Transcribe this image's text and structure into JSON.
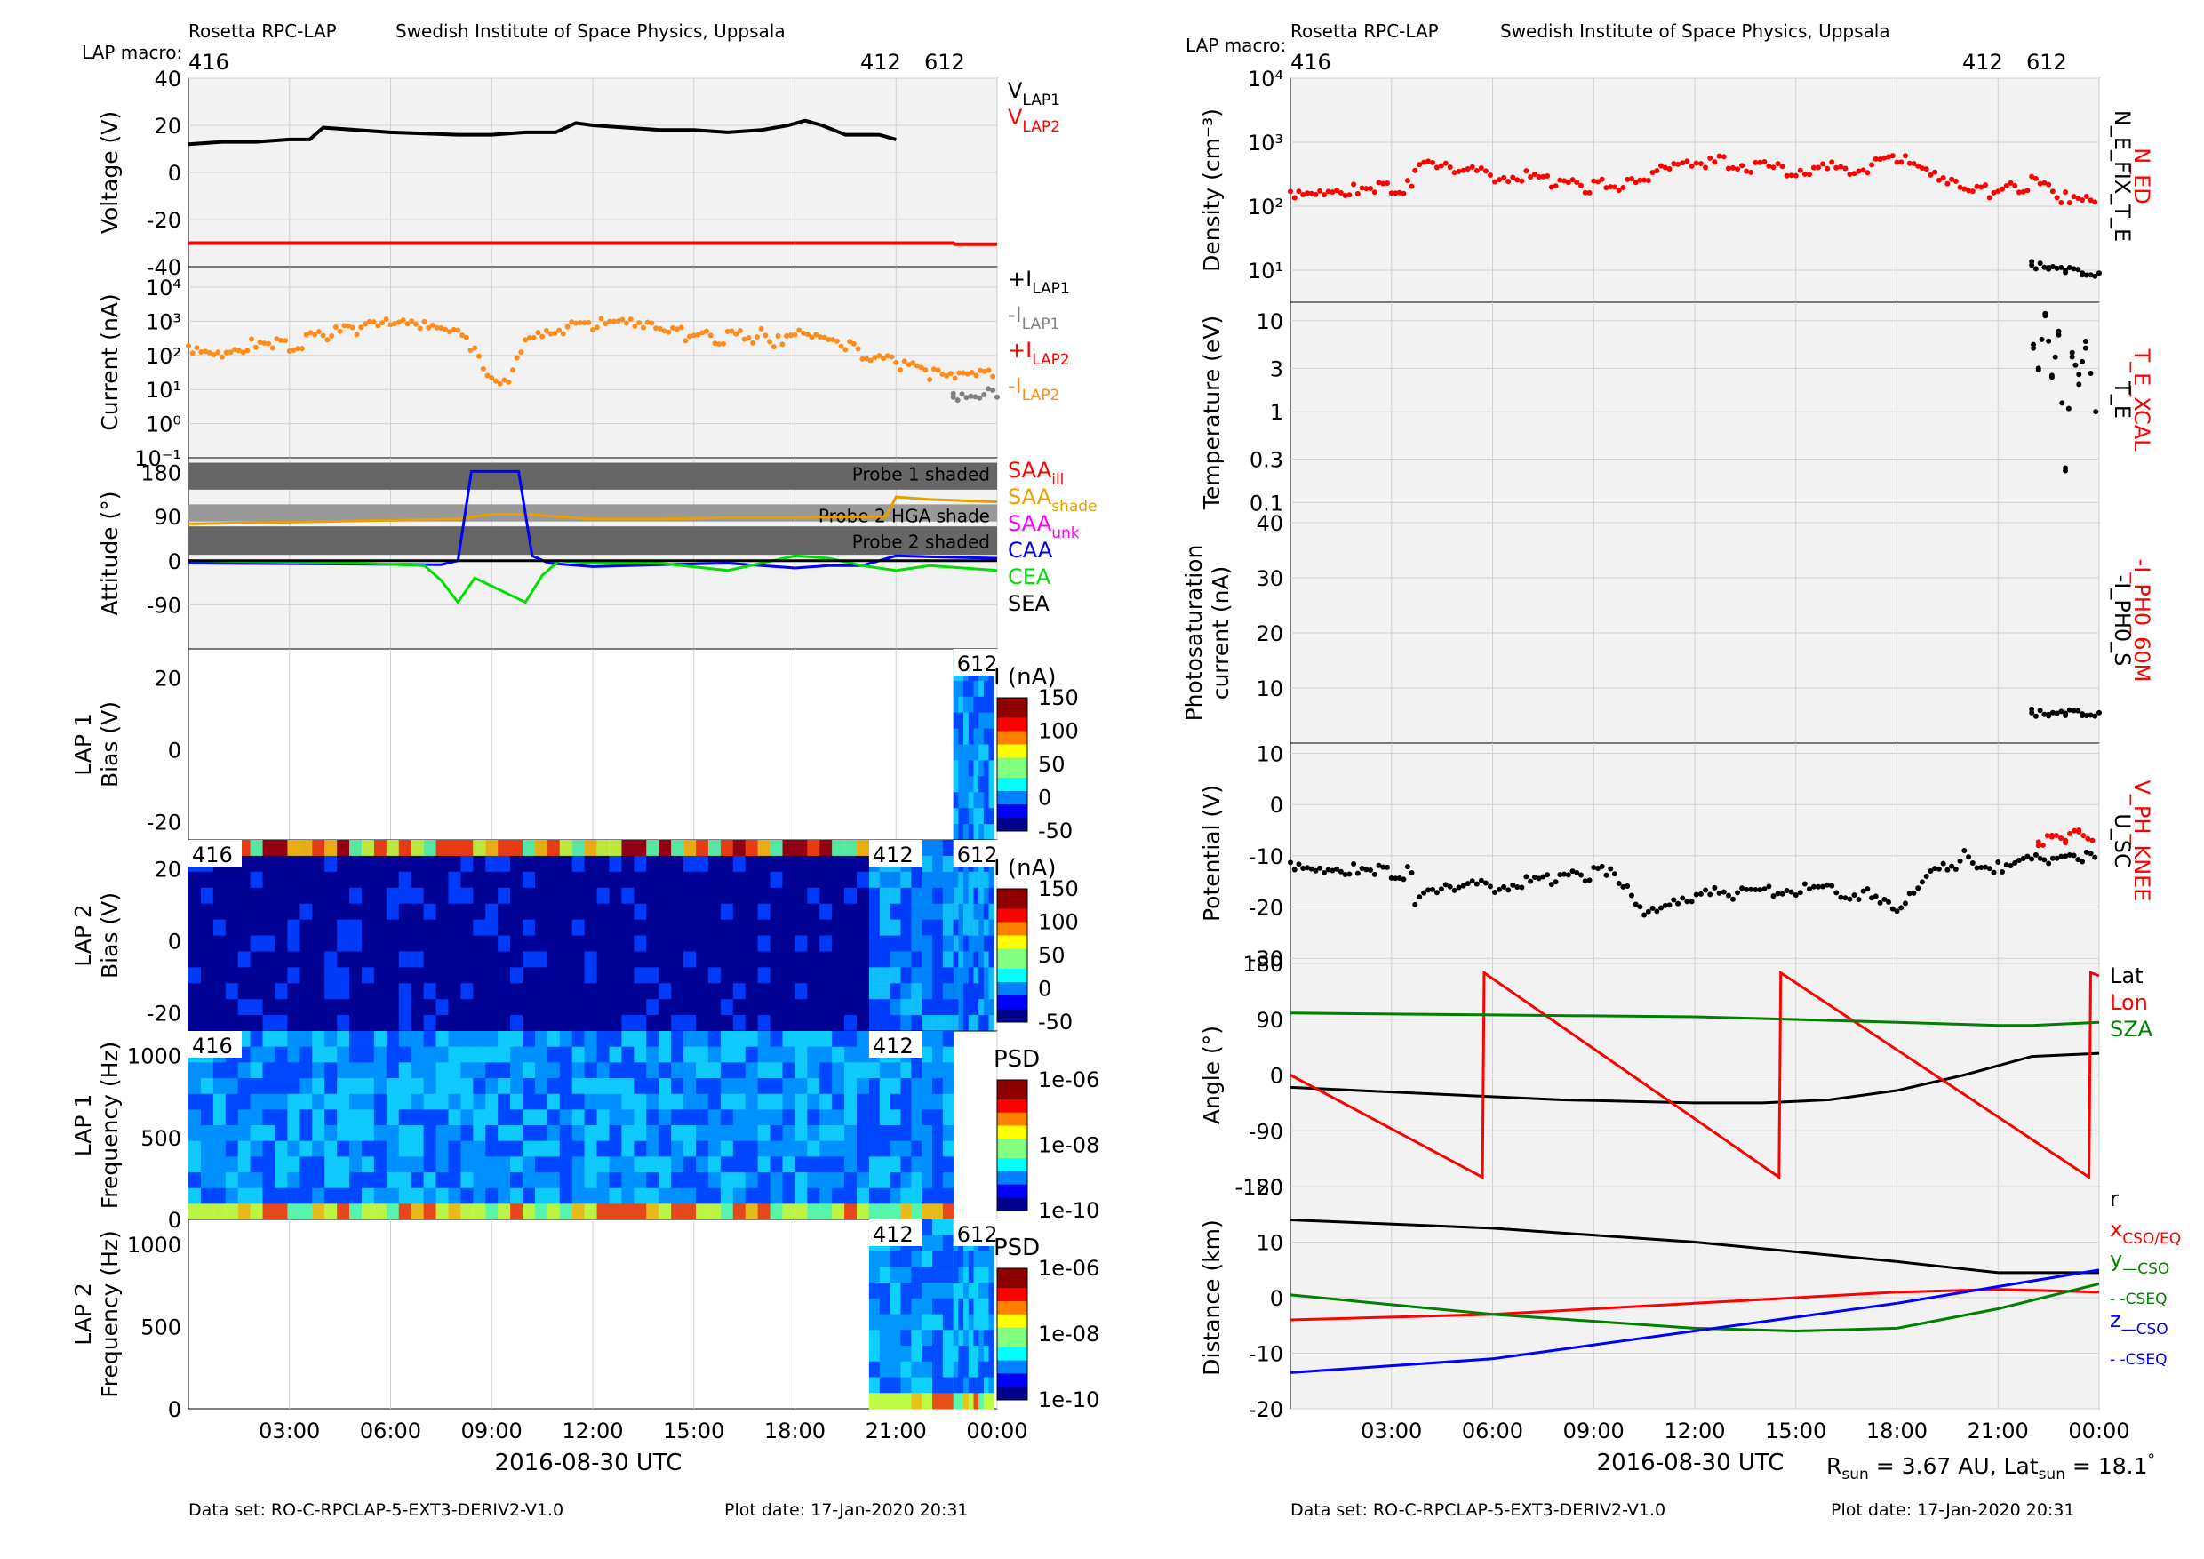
{
  "header": {
    "instrument": "Rosetta RPC-LAP",
    "institute": "Swedish Institute of Space Physics, Uppsala",
    "macro_label": "LAP macro:",
    "macros": [
      "416",
      "412",
      "612"
    ]
  },
  "footer": {
    "dataset": "Data set: RO-C-RPCLAP-5-EXT3-DERIV2-V1.0",
    "plot_date": "Plot date: 17-Jan-2020 20:31",
    "rsun_prefix": "R",
    "rsun_sub": "sun",
    "rsun_value": " = 3.67 AU, Lat",
    "lat_sub": "sun",
    "lat_value": " = 18.1",
    "degree": "°"
  },
  "time_axis": {
    "ticks": [
      "03:00",
      "06:00",
      "09:00",
      "12:00",
      "15:00",
      "18:00",
      "21:00",
      "00:00"
    ],
    "label": "2016-08-30 UTC"
  },
  "colors": {
    "black": "#000000",
    "red": "#ff0000",
    "orange": "#ff8c1a",
    "gray": "#808080",
    "blue": "#0000ff",
    "green": "#00e000",
    "dark_green": "#008000",
    "magenta": "#ff00ff",
    "gold": "#e6a100",
    "panel_bg": "#f2f2f2",
    "grid": "#d0d0d0"
  },
  "chart_data": [
    {
      "type": "line",
      "panel": "voltage",
      "ylabel": "Voltage (V)",
      "ylim": [
        -40,
        40
      ],
      "yticks": [
        "40",
        "20",
        "0",
        "-20",
        "-40"
      ],
      "legend": [
        {
          "main": "V",
          "sub": "LAP1",
          "color": "#000000"
        },
        {
          "main": "V",
          "sub": "LAP2",
          "color": "#ff0000"
        }
      ],
      "series": [
        {
          "name": "V_LAP1",
          "color": "#000000",
          "x": [
            0,
            1,
            2,
            3,
            3.6,
            4,
            6,
            8,
            9,
            10,
            10.9,
            11.5,
            12,
            13,
            14,
            15,
            16,
            17,
            17.8,
            18.3,
            18.8,
            19.5,
            20,
            20.5,
            21
          ],
          "y": [
            12,
            13,
            13,
            14,
            14,
            19,
            17,
            16,
            16,
            17,
            17,
            21,
            20,
            19,
            18,
            18,
            17,
            18,
            20,
            22,
            20,
            16,
            16,
            16,
            14
          ]
        },
        {
          "name": "V_LAP2",
          "color": "#ff0000",
          "x": [
            0,
            22.7,
            22.75,
            24
          ],
          "y": [
            -30,
            -30,
            -30.5,
            -30.5
          ]
        }
      ]
    },
    {
      "type": "scatter",
      "panel": "current",
      "yscale": "log",
      "ylabel": "Current (nA)",
      "yticks": [
        "10⁻¹",
        "10⁰",
        "10¹",
        "10²",
        "10³",
        "10⁴"
      ],
      "legend": [
        {
          "main": "+I",
          "sub": "LAP1",
          "color": "#000000"
        },
        {
          "main": "-I",
          "sub": "LAP1",
          "color": "#808080"
        },
        {
          "main": "+I",
          "sub": "LAP2",
          "color": "#ff0000"
        },
        {
          "main": "-I",
          "sub": "LAP2",
          "color": "#ff8c1a"
        }
      ],
      "series": [
        {
          "name": "-I_LAP2",
          "color": "#ff8c1a",
          "x": [
            0,
            1,
            2,
            3,
            4,
            5,
            6,
            7,
            7.5,
            8,
            8.5,
            9,
            9.5,
            10,
            10.5,
            11,
            12,
            13,
            14,
            15,
            16,
            17,
            17.5,
            18,
            18.5,
            19,
            20,
            21,
            22,
            23,
            24
          ],
          "y": [
            150,
            100,
            200,
            150,
            300,
            500,
            600,
            500,
            400,
            300,
            100,
            15,
            20,
            300,
            400,
            500,
            700,
            600,
            400,
            300,
            250,
            300,
            200,
            500,
            400,
            300,
            80,
            50,
            20,
            15,
            25
          ]
        },
        {
          "name": "-I_LAP1",
          "color": "#808080",
          "x": [
            22.7,
            24
          ],
          "y": [
            6,
            6
          ]
        }
      ]
    },
    {
      "type": "line",
      "panel": "attitude",
      "ylabel": "Attitude (°)",
      "yticks": [
        "180",
        "90",
        "0",
        "-90"
      ],
      "shades": [
        "Probe 1 shaded",
        "Probe 2 HGA shade",
        "Probe 2 shaded"
      ],
      "legend": [
        {
          "main": "SAA",
          "sub": "ill",
          "color": "#ff0000"
        },
        {
          "main": "SAA",
          "sub": "shade",
          "color": "#e6a100"
        },
        {
          "main": "SAA",
          "sub": "unk",
          "color": "#ff00ff"
        },
        {
          "main": "CAA",
          "sub": "",
          "color": "#0000ff"
        },
        {
          "main": "CEA",
          "sub": "",
          "color": "#00e000"
        },
        {
          "main": "SEA",
          "sub": "",
          "color": "#000000"
        }
      ],
      "series": [
        {
          "name": "SAA",
          "color": "#e6a100",
          "x": [
            0,
            4,
            8,
            9,
            10,
            11,
            12,
            14,
            16,
            18,
            20,
            20.7,
            21,
            22,
            24
          ],
          "y": [
            75,
            80,
            85,
            95,
            95,
            90,
            85,
            85,
            88,
            88,
            90,
            90,
            130,
            125,
            120
          ]
        },
        {
          "name": "CAA",
          "color": "#0000ff",
          "x": [
            0,
            7.5,
            8,
            8.4,
            9.8,
            10.2,
            10.7,
            12,
            14,
            16,
            18,
            19,
            20,
            21,
            22,
            24
          ],
          "y": [
            -5,
            -8,
            0,
            182,
            182,
            10,
            -5,
            -12,
            -8,
            -5,
            -15,
            -10,
            -10,
            10,
            8,
            5
          ]
        },
        {
          "name": "CEA",
          "color": "#00e000",
          "x": [
            0,
            5,
            7,
            7.5,
            8,
            8.5,
            10,
            10.5,
            11,
            12,
            14,
            16,
            18,
            19,
            20,
            21,
            22,
            24
          ],
          "y": [
            0,
            -5,
            -10,
            -40,
            -85,
            -35,
            -85,
            -30,
            0,
            -5,
            -5,
            -20,
            10,
            5,
            -10,
            -20,
            -10,
            -20
          ]
        },
        {
          "name": "SEA",
          "color": "#000000",
          "x": [
            0,
            24
          ],
          "y": [
            0,
            0
          ]
        }
      ]
    },
    {
      "type": "heatmap",
      "panel": "lap1_bias",
      "ylabel": "LAP 1 Bias (V)",
      "yticks": [
        "20",
        "0",
        "-20"
      ],
      "colorbar": {
        "label": "I (nA)",
        "ticks": [
          "150",
          "100",
          "50",
          "0",
          "-50"
        ]
      },
      "segment_labels": [
        "612"
      ]
    },
    {
      "type": "heatmap",
      "panel": "lap2_bias",
      "ylabel": "LAP 2 Bias (V)",
      "yticks": [
        "20",
        "0",
        "-20"
      ],
      "colorbar": {
        "label": "I (nA)",
        "ticks": [
          "150",
          "100",
          "50",
          "0",
          "-50"
        ]
      },
      "segment_labels": [
        "416",
        "412",
        "612"
      ]
    },
    {
      "type": "heatmap",
      "panel": "lap1_freq",
      "ylabel": "LAP 1 Frequency (Hz)",
      "yticks": [
        "1000",
        "500",
        "0"
      ],
      "colorbar": {
        "label": "PSD",
        "ticks": [
          "1e-06",
          "1e-08",
          "1e-10"
        ]
      },
      "segment_labels": [
        "416",
        "412"
      ]
    },
    {
      "type": "heatmap",
      "panel": "lap2_freq",
      "ylabel": "LAP 2 Frequency (Hz)",
      "yticks": [
        "1000",
        "500",
        "0"
      ],
      "colorbar": {
        "label": "PSD",
        "ticks": [
          "1e-06",
          "1e-08",
          "1e-10"
        ]
      },
      "segment_labels": [
        "412",
        "612"
      ]
    },
    {
      "type": "scatter",
      "panel": "density",
      "yscale": "log",
      "ylabel": "Density (cm⁻³)",
      "yticks": [
        "10⁴",
        "10³",
        "10²",
        "10¹"
      ],
      "right_labels": [
        {
          "text": "N_ED",
          "color": "#ff0000"
        },
        {
          "text": "N_E_FIX_T_E",
          "color": "#000000"
        }
      ],
      "series": [
        {
          "name": "N_ED",
          "color": "#ff0000",
          "x": [
            0,
            1,
            2,
            3,
            3.6,
            3.7,
            5,
            7,
            8,
            9,
            10,
            11,
            11.5,
            13,
            15,
            17,
            18,
            19,
            20,
            21,
            22,
            22.5,
            23,
            23.5,
            24
          ],
          "y": [
            150,
            160,
            170,
            170,
            180,
            400,
            300,
            250,
            200,
            180,
            200,
            350,
            500,
            400,
            320,
            350,
            550,
            250,
            150,
            150,
            200,
            150,
            120,
            140,
            110
          ]
        },
        {
          "name": "N_E_FIX_T_E",
          "color": "#000000",
          "x": [
            22,
            22.5,
            23,
            23.5,
            24
          ],
          "y": [
            12,
            11,
            10,
            9,
            9
          ]
        }
      ]
    },
    {
      "type": "scatter",
      "panel": "temperature",
      "yscale": "log",
      "ylabel": "Temperature (eV)",
      "yticks": [
        "10",
        "3",
        "1",
        "0.3",
        "0.1"
      ],
      "right_labels": [
        {
          "text": "T_E_XCAL",
          "color": "#ff0000"
        },
        {
          "text": "T_E",
          "color": "#000000"
        }
      ],
      "series": [
        {
          "name": "T_E",
          "color": "#000000",
          "x": [
            22.05,
            22.2,
            22.4,
            22.6,
            22.8,
            23.0,
            23.2,
            23.4,
            23.6,
            23.9
          ],
          "y": [
            5,
            3,
            12,
            2.5,
            7,
            0.24,
            4,
            2,
            5,
            1
          ]
        }
      ]
    },
    {
      "type": "scatter",
      "panel": "photosaturation",
      "ylabel": "Photosaturation current (nA)",
      "yticks": [
        "40",
        "30",
        "20",
        "10"
      ],
      "right_labels": [
        {
          "text": "-I_PH0_60M",
          "color": "#ff0000"
        },
        {
          "text": "-I_PH0_S",
          "color": "#000000"
        }
      ],
      "series": [
        {
          "name": "-I_PH0_S",
          "color": "#000000",
          "x": [
            22,
            22.5,
            23,
            23.5,
            24
          ],
          "y": [
            5.5,
            5.2,
            5.4,
            5.3,
            5.5
          ]
        }
      ]
    },
    {
      "type": "scatter",
      "panel": "potential",
      "ylabel": "Potential (V)",
      "yticks": [
        "10",
        "0",
        "-10",
        "-20",
        "-30"
      ],
      "right_labels": [
        {
          "text": "V_PH_KNEE",
          "color": "#ff0000"
        },
        {
          "text": "U_SC",
          "color": "#000000"
        }
      ],
      "series": [
        {
          "name": "U_SC",
          "color": "#000000",
          "x": [
            0,
            1,
            2,
            3,
            3.6,
            3.7,
            5,
            7,
            8,
            9,
            9.5,
            10,
            10.5,
            11,
            11.5,
            13,
            15,
            17,
            18,
            18.5,
            19,
            20,
            21,
            22,
            22.5,
            23,
            24
          ],
          "y": [
            -12,
            -13,
            -13,
            -14,
            -14,
            -19,
            -17,
            -16,
            -15,
            -14,
            -14,
            -17,
            -21,
            -20,
            -19,
            -18,
            -17,
            -18,
            -22,
            -18,
            -15,
            -11,
            -13,
            -10,
            -11,
            -10,
            -12
          ]
        },
        {
          "name": "V_PH_KNEE",
          "color": "#ff0000",
          "x": [
            22.2,
            22.6,
            23,
            23.4,
            23.8
          ],
          "y": [
            -8,
            -6,
            -7,
            -5,
            -7
          ]
        }
      ]
    },
    {
      "type": "line",
      "panel": "angle",
      "ylabel": "Angle (°)",
      "yticks": [
        "180",
        "90",
        "0",
        "-90",
        "-180"
      ],
      "legend": [
        {
          "main": "Lat",
          "sub": "",
          "color": "#000000"
        },
        {
          "main": "Lon",
          "sub": "",
          "color": "#ff0000"
        },
        {
          "main": "SZA",
          "sub": "",
          "color": "#008000"
        }
      ],
      "series": [
        {
          "name": "Lat",
          "color": "#000000",
          "x": [
            0,
            4,
            8,
            12,
            14,
            16,
            18,
            20,
            22,
            24
          ],
          "y": [
            -20,
            -30,
            -40,
            -45,
            -45,
            -40,
            -25,
            0,
            30,
            35
          ]
        },
        {
          "name": "Lon",
          "color": "#ff0000",
          "x": [
            0,
            5.7,
            5.75,
            14.5,
            14.55,
            23.7,
            23.75,
            24
          ],
          "y": [
            0,
            -165,
            165,
            -165,
            165,
            -165,
            165,
            160
          ]
        },
        {
          "name": "SZA",
          "color": "#008000",
          "x": [
            0,
            6,
            12,
            18,
            21,
            22,
            24
          ],
          "y": [
            100,
            97,
            94,
            85,
            80,
            80,
            85
          ]
        }
      ]
    },
    {
      "type": "line",
      "panel": "distance",
      "ylabel": "Distance (km)",
      "yticks": [
        "20",
        "10",
        "0",
        "-10",
        "-20"
      ],
      "legend": [
        {
          "main": "r",
          "sub": "",
          "color": "#000000"
        },
        {
          "main": "x",
          "sub": "CSO/EQ",
          "color": "#ff0000"
        },
        {
          "main": "y",
          "sub": "—CSO",
          "color": "#008000"
        },
        {
          "main": "",
          "sub": "- -CSEQ",
          "color": "#008000"
        },
        {
          "main": "z",
          "sub": "—CSO",
          "color": "#0000ff"
        },
        {
          "main": "",
          "sub": "- -CSEQ",
          "color": "#0000ff"
        }
      ],
      "series": [
        {
          "name": "r",
          "color": "#000000",
          "x": [
            0,
            6,
            12,
            18,
            21,
            24
          ],
          "y": [
            14,
            12.5,
            10,
            6.5,
            4.5,
            4.5
          ]
        },
        {
          "name": "x",
          "color": "#ff0000",
          "x": [
            0,
            6,
            12,
            18,
            21,
            24
          ],
          "y": [
            -4,
            -3,
            -1,
            1,
            1.5,
            1
          ]
        },
        {
          "name": "y",
          "color": "#008000",
          "x": [
            0,
            6,
            12,
            15,
            18,
            21,
            24
          ],
          "y": [
            0.5,
            -3,
            -5.5,
            -6,
            -5.5,
            -2,
            2.5
          ]
        },
        {
          "name": "z",
          "color": "#0000ff",
          "x": [
            0,
            6,
            12,
            18,
            21,
            24
          ],
          "y": [
            -13.5,
            -11,
            -6,
            -1,
            2,
            5
          ]
        }
      ]
    }
  ]
}
